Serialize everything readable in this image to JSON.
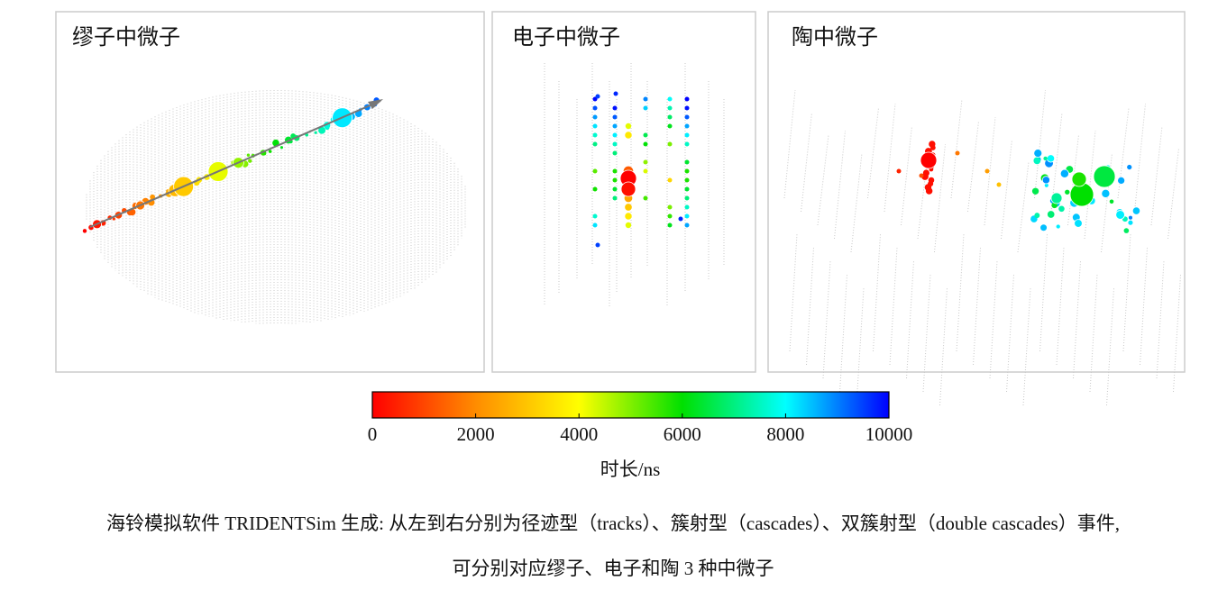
{
  "panels": [
    {
      "title": "缪子中微子"
    },
    {
      "title": "电子中微子"
    },
    {
      "title": "陶中微子"
    }
  ],
  "colorbar": {
    "label": "时长/ns",
    "lim": [
      0,
      10000
    ],
    "ticks": [
      0,
      2000,
      4000,
      6000,
      8000,
      10000
    ],
    "colors": [
      "#ff0000",
      "#ff8c00",
      "#ffff00",
      "#00e000",
      "#00ffff",
      "#0000ff"
    ]
  },
  "caption": {
    "lines": [
      "海铃模拟软件 TRIDENTSim 生成: 从左到右分别为径迹型（tracks）、簇射型（cascades）、双簇射型（double cascades）事件,",
      "可分别对应缪子、电子和陶 3 种中微子"
    ]
  }
}
